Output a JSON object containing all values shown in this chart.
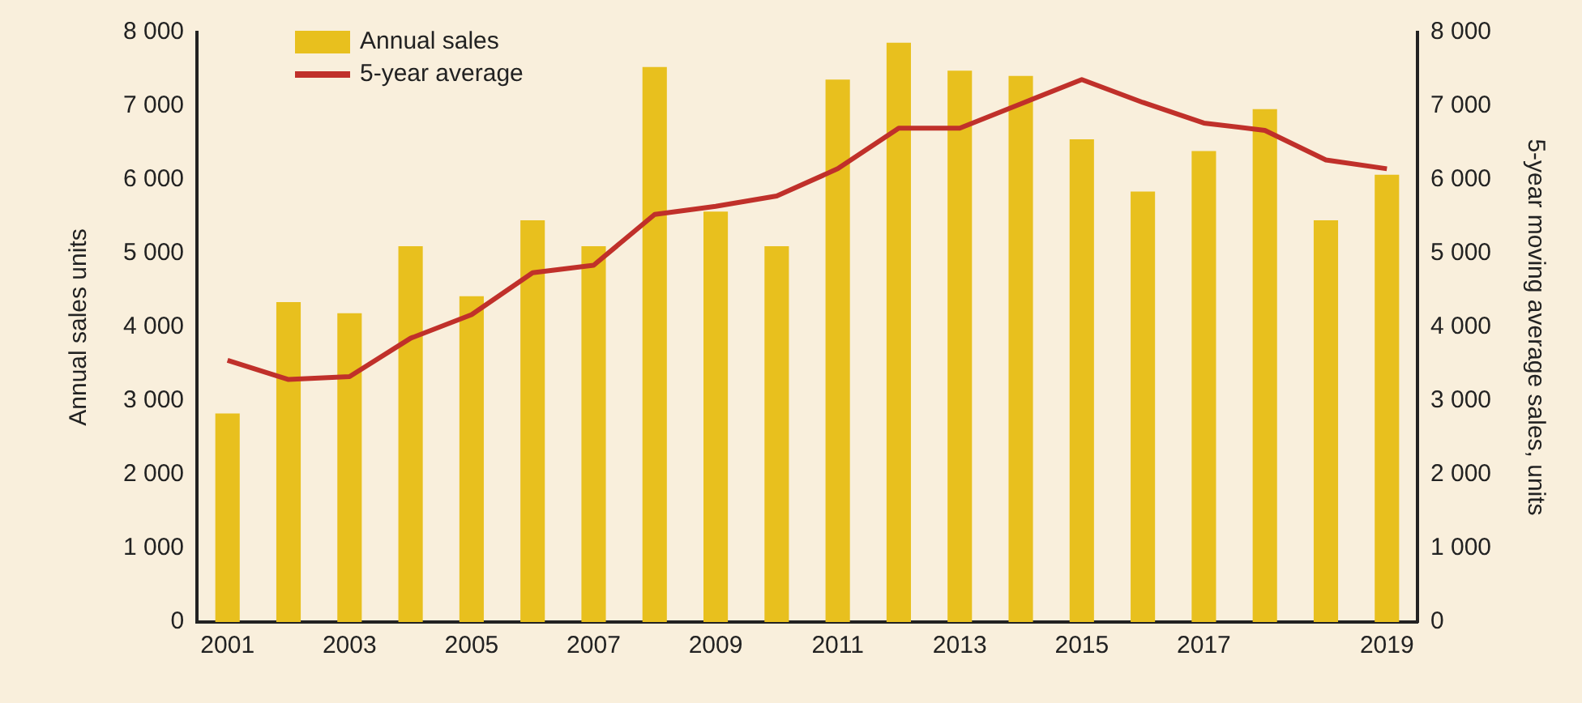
{
  "chart_data": {
    "type": "bar",
    "categories": [
      "2001",
      null,
      "2003",
      null,
      "2005",
      null,
      "2007",
      null,
      "2009",
      null,
      "2011",
      null,
      "2013",
      null,
      "2015",
      null,
      "2017",
      null,
      null,
      "2019"
    ],
    "ylabel": "Annual sales units",
    "y2label": "5-year moving average sales, units",
    "series": [
      {
        "name": "Annual sales",
        "color": "#e8c01e",
        "values": [
          2830,
          4340,
          4190,
          5100,
          4420,
          5450,
          5100,
          7530,
          5570,
          5100,
          7360,
          7860,
          7480,
          7410,
          6550,
          5840,
          6390,
          6960,
          5450,
          6070
        ]
      },
      {
        "name": "5-year average",
        "type": "line",
        "axis": "y2",
        "color": "#c0302a",
        "values": [
          3550,
          3290,
          3330,
          3850,
          4170,
          4740,
          4840,
          5530,
          5640,
          5780,
          6150,
          6700,
          6700,
          7030,
          7360,
          7050,
          6770,
          6670,
          6270,
          6150
        ]
      }
    ],
    "ylim": [
      0,
      8000
    ],
    "yticks": [
      0,
      {
        "value": 1000,
        "label": "1 000"
      },
      {
        "value": 2000,
        "label": "2 000"
      },
      {
        "value": 3000,
        "label": "3 000"
      },
      {
        "value": 4000,
        "label": "4 000"
      },
      {
        "value": 5000,
        "label": "5 000"
      },
      {
        "value": 6000,
        "label": "6 000"
      },
      {
        "value": 7000,
        "label": "7 000"
      },
      {
        "value": 8000,
        "label": "8 000"
      }
    ],
    "y2lim": [
      0,
      8000
    ],
    "y2ticks": [
      0,
      {
        "value": 1000,
        "label": "1 000"
      },
      {
        "value": 2000,
        "label": "2 000"
      },
      {
        "value": 3000,
        "label": "3 000"
      },
      {
        "value": 4000,
        "label": "4 000"
      },
      {
        "value": 5000,
        "label": "5 000"
      },
      {
        "value": 6000,
        "label": "6 000"
      },
      {
        "value": 7000,
        "label": "7 000"
      },
      {
        "value": 8000,
        "label": "8 000"
      }
    ],
    "grid": false,
    "legend": "top left",
    "marker": "none",
    "line_style": "solid"
  }
}
